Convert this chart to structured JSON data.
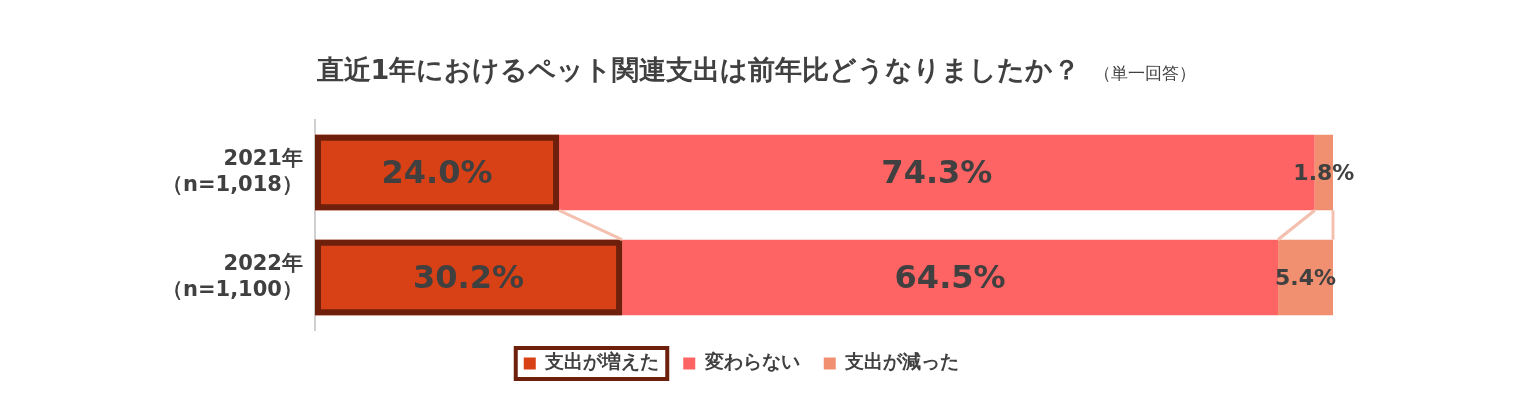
{
  "chart_data": {
    "type": "bar",
    "orientation": "horizontal",
    "stacked": true,
    "title": "直近1年におけるペット関連支出は前年比どうなりましたか？",
    "subtitle": "（単一回答）",
    "categories": [
      "2021年（n=1,018）",
      "2022年（n=1,100）"
    ],
    "series": [
      {
        "name": "支出が増えた",
        "color": "#d84115",
        "values": [
          24.0,
          30.2
        ],
        "value_labels": [
          "24.0%",
          "30.2%"
        ]
      },
      {
        "name": "変わらない",
        "color": "#ff6464",
        "values": [
          74.3,
          64.5
        ],
        "value_labels": [
          "74.3%",
          "64.5%"
        ]
      },
      {
        "name": "支出が減った",
        "color": "#f09070",
        "values": [
          1.8,
          5.4
        ],
        "value_labels": [
          "1.8%",
          "5.4%"
        ]
      }
    ],
    "xlim": [
      0,
      100.1
    ],
    "tick_labels": "y",
    "grid": false,
    "legend": "bottom"
  }
}
